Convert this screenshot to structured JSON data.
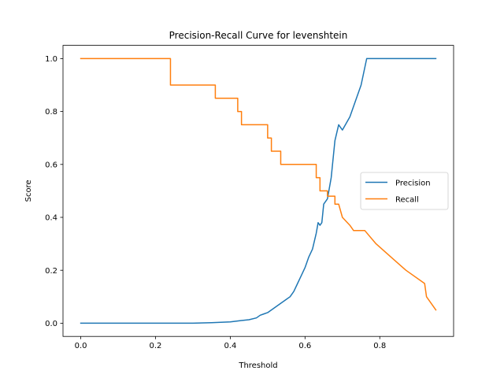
{
  "chart_data": {
    "type": "line",
    "title": "Precision-Recall Curve for levenshtein",
    "xlabel": "Threshold",
    "ylabel": "Score",
    "xlim": [
      -0.0475,
      0.9975
    ],
    "ylim": [
      -0.05,
      1.05
    ],
    "xticks": [
      0.0,
      0.2,
      0.4,
      0.6,
      0.8
    ],
    "yticks": [
      0.0,
      0.2,
      0.4,
      0.6,
      0.8,
      1.0
    ],
    "xtick_labels": [
      "0.0",
      "0.2",
      "0.4",
      "0.6",
      "0.8"
    ],
    "ytick_labels": [
      "0.0",
      "0.2",
      "0.4",
      "0.6",
      "0.8",
      "1.0"
    ],
    "grid": false,
    "legend_position": "center-right",
    "series": [
      {
        "name": "Precision",
        "color": "#1f77b4",
        "x": [
          0.0,
          0.1,
          0.2,
          0.3,
          0.35,
          0.4,
          0.43,
          0.45,
          0.47,
          0.48,
          0.49,
          0.5,
          0.51,
          0.52,
          0.53,
          0.54,
          0.55,
          0.56,
          0.57,
          0.58,
          0.59,
          0.6,
          0.61,
          0.62,
          0.63,
          0.635,
          0.64,
          0.645,
          0.65,
          0.66,
          0.67,
          0.68,
          0.69,
          0.7,
          0.72,
          0.75,
          0.765,
          0.8,
          0.85,
          0.9,
          0.95
        ],
        "y": [
          0.0,
          0.0,
          0.0,
          0.0,
          0.002,
          0.005,
          0.01,
          0.013,
          0.02,
          0.03,
          0.035,
          0.04,
          0.05,
          0.06,
          0.07,
          0.08,
          0.09,
          0.1,
          0.12,
          0.15,
          0.18,
          0.21,
          0.25,
          0.28,
          0.34,
          0.38,
          0.37,
          0.38,
          0.45,
          0.47,
          0.55,
          0.69,
          0.75,
          0.73,
          0.78,
          0.9,
          1.0,
          1.0,
          1.0,
          1.0,
          1.0
        ]
      },
      {
        "name": "Recall",
        "color": "#ff7f0e",
        "x": [
          0.0,
          0.24,
          0.24,
          0.36,
          0.36,
          0.42,
          0.42,
          0.43,
          0.43,
          0.5,
          0.5,
          0.51,
          0.51,
          0.535,
          0.535,
          0.63,
          0.63,
          0.64,
          0.64,
          0.66,
          0.66,
          0.68,
          0.68,
          0.69,
          0.7,
          0.72,
          0.73,
          0.76,
          0.79,
          0.83,
          0.87,
          0.92,
          0.925,
          0.95
        ],
        "y": [
          1.0,
          1.0,
          0.9,
          0.9,
          0.85,
          0.85,
          0.8,
          0.8,
          0.75,
          0.75,
          0.7,
          0.7,
          0.65,
          0.65,
          0.6,
          0.6,
          0.55,
          0.55,
          0.5,
          0.5,
          0.48,
          0.48,
          0.45,
          0.45,
          0.4,
          0.37,
          0.35,
          0.35,
          0.3,
          0.25,
          0.2,
          0.15,
          0.1,
          0.05
        ]
      }
    ]
  }
}
